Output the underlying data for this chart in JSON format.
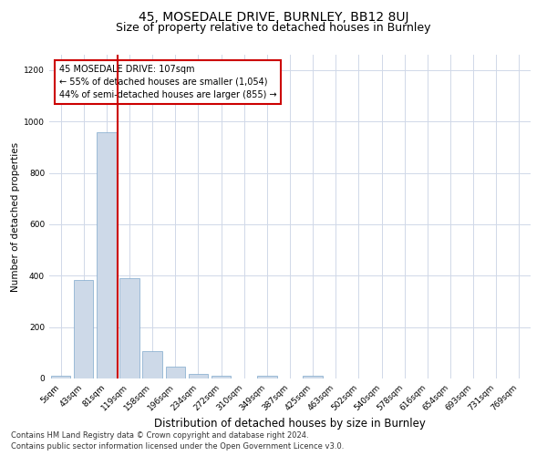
{
  "title": "45, MOSEDALE DRIVE, BURNLEY, BB12 8UJ",
  "subtitle": "Size of property relative to detached houses in Burnley",
  "xlabel": "Distribution of detached houses by size in Burnley",
  "ylabel": "Number of detached properties",
  "categories": [
    "5sqm",
    "43sqm",
    "81sqm",
    "119sqm",
    "158sqm",
    "196sqm",
    "234sqm",
    "272sqm",
    "310sqm",
    "349sqm",
    "387sqm",
    "425sqm",
    "463sqm",
    "502sqm",
    "540sqm",
    "578sqm",
    "616sqm",
    "654sqm",
    "693sqm",
    "731sqm",
    "769sqm"
  ],
  "values": [
    10,
    385,
    960,
    390,
    105,
    45,
    18,
    10,
    0,
    10,
    0,
    10,
    0,
    0,
    0,
    0,
    0,
    0,
    0,
    0,
    0
  ],
  "bar_color": "#cdd9e8",
  "bar_edgecolor": "#7fa8cc",
  "grid_color": "#d0d8e8",
  "vline_x": 2.5,
  "vline_color": "#cc0000",
  "ylim": [
    0,
    1260
  ],
  "yticks": [
    0,
    200,
    400,
    600,
    800,
    1000,
    1200
  ],
  "annotation_text": "45 MOSEDALE DRIVE: 107sqm\n← 55% of detached houses are smaller (1,054)\n44% of semi-detached houses are larger (855) →",
  "annotation_box_edgecolor": "#cc0000",
  "footnote1": "Contains HM Land Registry data © Crown copyright and database right 2024.",
  "footnote2": "Contains public sector information licensed under the Open Government Licence v3.0.",
  "title_fontsize": 10,
  "subtitle_fontsize": 9,
  "xlabel_fontsize": 8.5,
  "ylabel_fontsize": 7.5,
  "tick_fontsize": 6.5,
  "annotation_fontsize": 7,
  "footnote_fontsize": 6
}
